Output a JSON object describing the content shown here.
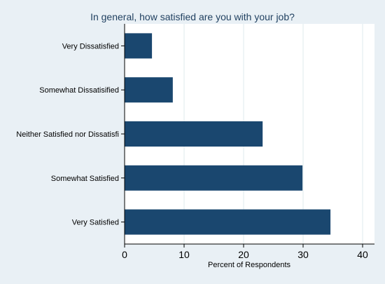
{
  "chart_data": {
    "type": "bar",
    "orientation": "horizontal",
    "title": "In general, how satisfied are you with your job?",
    "xlabel": "Percent of Respondents",
    "ylabel": "",
    "categories": [
      "Very Dissatisfied",
      "Somewhat Dissatisified",
      "Neither Satisfied nor Dissatisfi",
      "Somewhat Satisfied",
      "Very Satisfied"
    ],
    "values": [
      4.6,
      8.1,
      23.2,
      29.9,
      34.6
    ],
    "xlim": [
      0,
      42
    ],
    "x_ticks": [
      0,
      10,
      20,
      30,
      40
    ],
    "grid": true,
    "colors": {
      "background": "#e9f0f5",
      "plot_background": "#ffffff",
      "bar": "#1a476f",
      "grid": "#eaf2f3",
      "text": "#000000",
      "title": "#1f3f5f"
    }
  }
}
